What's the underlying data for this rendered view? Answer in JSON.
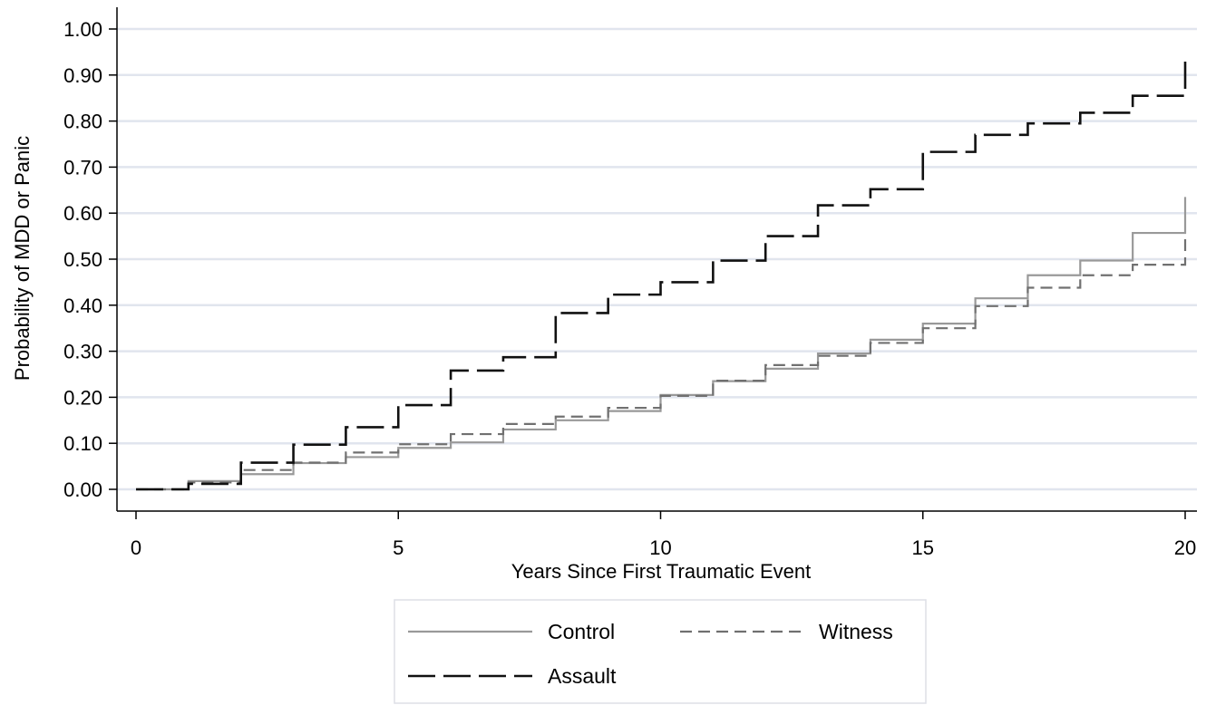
{
  "chart_data": {
    "type": "line",
    "step": true,
    "title": "",
    "xlabel": "Years Since First Traumatic Event",
    "ylabel": "Probability of MDD or Panic",
    "xlim": [
      0,
      20
    ],
    "ylim": [
      0,
      1
    ],
    "grid": "horizontal",
    "legend_position": "bottom",
    "x_ticks": [
      0,
      5,
      10,
      15,
      20
    ],
    "x_tick_labels": [
      "0",
      "5",
      "10",
      "15",
      "20"
    ],
    "y_ticks": [
      0,
      0.1,
      0.2,
      0.3,
      0.4,
      0.5,
      0.6,
      0.7,
      0.8,
      0.9,
      1.0
    ],
    "y_tick_labels": [
      "0.00",
      "0.10",
      "0.20",
      "0.30",
      "0.40",
      "0.50",
      "0.60",
      "0.70",
      "0.80",
      "0.90",
      "1.00"
    ],
    "x": [
      0,
      1,
      2,
      3,
      4,
      5,
      6,
      7,
      8,
      9,
      10,
      11,
      12,
      13,
      14,
      15,
      16,
      17,
      18,
      19,
      20
    ],
    "series": [
      {
        "name": "Control",
        "color": "#999999",
        "dash": "solid",
        "values": [
          0.0,
          0.018,
          0.033,
          0.057,
          0.07,
          0.09,
          0.102,
          0.13,
          0.15,
          0.17,
          0.205,
          0.235,
          0.262,
          0.295,
          0.325,
          0.36,
          0.415,
          0.465,
          0.497,
          0.557,
          0.635
        ]
      },
      {
        "name": "Witness",
        "color": "#707070",
        "dash": "dashed",
        "values": [
          0.0,
          0.015,
          0.042,
          0.058,
          0.08,
          0.098,
          0.12,
          0.142,
          0.158,
          0.177,
          0.203,
          0.236,
          0.27,
          0.29,
          0.318,
          0.35,
          0.398,
          0.438,
          0.465,
          0.488,
          0.545
        ]
      },
      {
        "name": "Assault",
        "color": "#111111",
        "dash": "longdash",
        "values": [
          0.0,
          0.012,
          0.058,
          0.097,
          0.135,
          0.183,
          0.258,
          0.287,
          0.383,
          0.423,
          0.45,
          0.497,
          0.55,
          0.617,
          0.652,
          0.733,
          0.77,
          0.795,
          0.818,
          0.855,
          0.945
        ]
      }
    ]
  },
  "colors": {
    "grid": "#e1e5ee",
    "axis": "#000000",
    "legend_border": "#dddfe6"
  }
}
